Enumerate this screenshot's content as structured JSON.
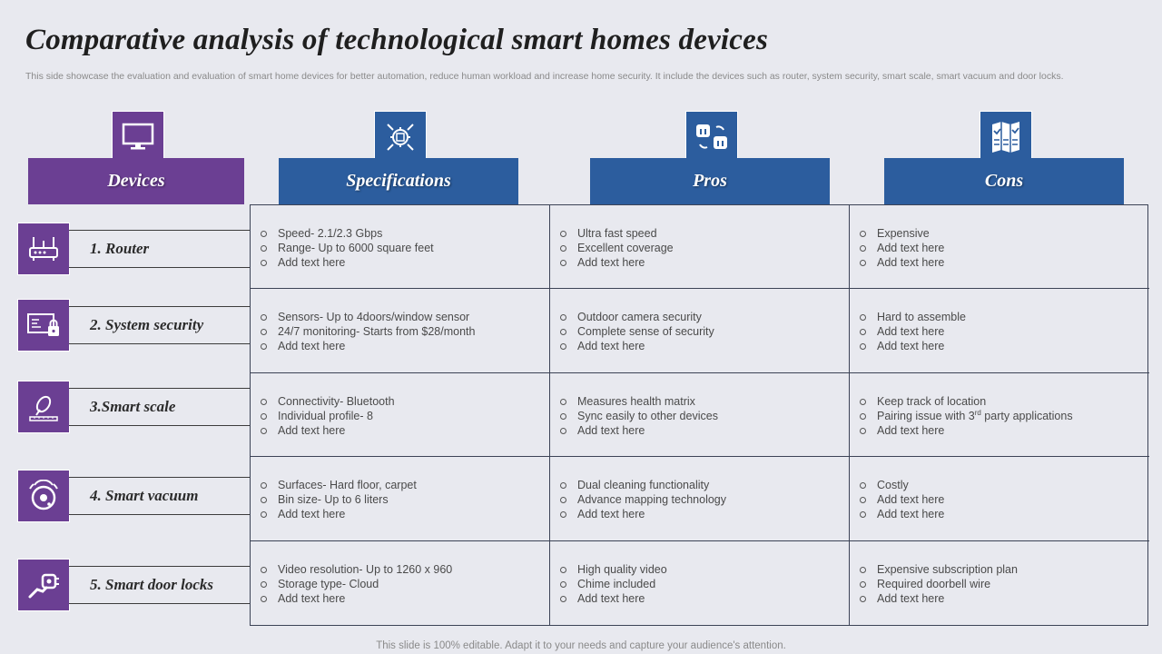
{
  "title": "Comparative analysis of technological smart homes devices",
  "subtitle": "This side showcase the evaluation and evaluation of smart home devices for better automation, reduce human workload and increase home security. It include the devices such as router, system security, smart scale, smart vacuum and door locks.",
  "headers": {
    "devices": "Devices",
    "specifications": "Specifications",
    "pros": "Pros",
    "cons": "Cons"
  },
  "header_icons": {
    "devices": "monitor-icon",
    "specifications": "gear-chip-icon",
    "pros": "thumbs-up-down-icon",
    "cons": "brochure-check-icon"
  },
  "devices": [
    {
      "label": "1. Router",
      "icon": "router-icon"
    },
    {
      "label": "2. System security",
      "icon": "security-lock-icon"
    },
    {
      "label": "3.Smart scale",
      "icon": "scale-icon"
    },
    {
      "label": "4. Smart vacuum",
      "icon": "vacuum-robot-icon"
    },
    {
      "label": "5. Smart door locks",
      "icon": "door-lock-icon"
    }
  ],
  "rows": [
    {
      "specifications": [
        "Speed- 2.1/2.3 Gbps",
        "Range- Up to 6000 square feet",
        "Add text here"
      ],
      "pros": [
        "Ultra fast speed",
        "Excellent coverage",
        "Add text here"
      ],
      "cons": [
        "Expensive",
        "Add text here",
        "Add text here"
      ]
    },
    {
      "specifications": [
        "Sensors- Up to 4doors/window sensor",
        "24/7 monitoring- Starts from $28/month",
        "Add text here"
      ],
      "pros": [
        "Outdoor camera security",
        "Complete sense of security",
        "Add text here"
      ],
      "cons": [
        "Hard to assemble",
        "Add text here",
        "Add text here"
      ]
    },
    {
      "specifications": [
        "Connectivity- Bluetooth",
        "Individual profile- 8",
        "Add text here"
      ],
      "pros": [
        "Measures health matrix",
        "Sync easily to other devices",
        "Add text here"
      ],
      "cons": [
        "Keep track of location",
        "Pairing issue with 3rd party applications",
        "Add text here"
      ]
    },
    {
      "specifications": [
        "Surfaces- Hard floor, carpet",
        "Bin size- Up to 6 liters",
        "Add text here"
      ],
      "pros": [
        "Dual cleaning functionality",
        "Advance mapping technology",
        "Add text here"
      ],
      "cons": [
        "Costly",
        "Add text here",
        "Add text here"
      ]
    },
    {
      "specifications": [
        "Video resolution- Up to 1260 x 960",
        "Storage type- Cloud",
        "Add text here"
      ],
      "pros": [
        "High quality video",
        "Chime included",
        "Add text here"
      ],
      "cons": [
        "Expensive subscription plan",
        "Required doorbell wire",
        "Add text here"
      ]
    }
  ],
  "footer": "This slide is 100% editable. Adapt it to your needs and capture your audience's attention.",
  "colors": {
    "purple": "#6b3f93",
    "blue": "#2c5d9e",
    "background": "#e8e9ef"
  }
}
